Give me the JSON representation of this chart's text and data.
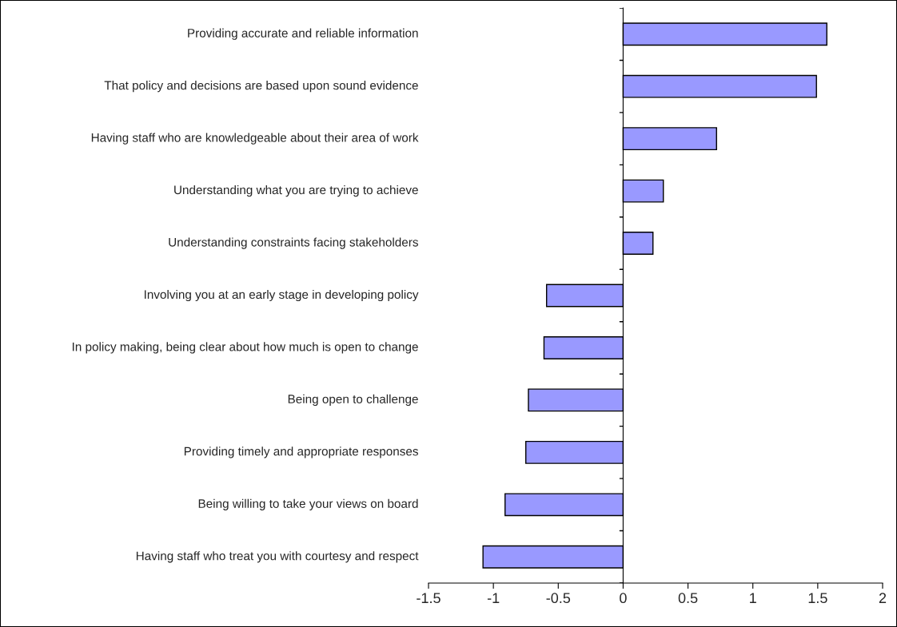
{
  "chart_data": {
    "type": "bar",
    "orientation": "horizontal",
    "categories": [
      "Providing accurate and reliable information",
      "That policy and decisions are based upon sound evidence",
      "Having staff who are knowledgeable about their area of work",
      "Understanding what you are trying to achieve",
      "Understanding constraints facing stakeholders",
      "Involving you at an early stage in developing policy",
      "In policy making, being clear about how much is open to change",
      "Being open to challenge",
      "Providing timely and appropriate responses",
      "Being willing to take your views on board",
      "Having staff who treat you with courtesy and respect"
    ],
    "values": [
      1.57,
      1.49,
      0.72,
      0.31,
      0.23,
      -0.59,
      -0.61,
      -0.73,
      -0.75,
      -0.91,
      -1.08
    ],
    "color": "#9999ff",
    "xlim": [
      -1.5,
      2
    ],
    "xticks": [
      -1.5,
      -1,
      -0.5,
      0,
      0.5,
      1,
      1.5,
      2
    ]
  }
}
